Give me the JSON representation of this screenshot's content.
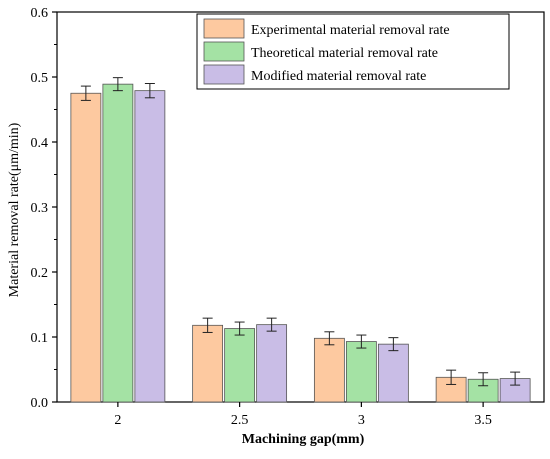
{
  "chart_data": {
    "type": "bar",
    "xlabel": "Machining gap(mm)",
    "ylabel": "Material removal rate(μm/min)",
    "categories": [
      "2",
      "2.5",
      "3",
      "3.5"
    ],
    "ylim": [
      0,
      0.6
    ],
    "yticks": [
      "0.0",
      "0.1",
      "0.2",
      "0.3",
      "0.4",
      "0.5",
      "0.6"
    ],
    "legend_position": "top-right",
    "grid": false,
    "series": [
      {
        "name": "Experimental material removal rate",
        "color": "#fdc9a0",
        "values": [
          0.475,
          0.118,
          0.098,
          0.038
        ],
        "errors": [
          0.011,
          0.011,
          0.01,
          0.011
        ]
      },
      {
        "name": "Theoretical material removal rate",
        "color": "#a4e2a4",
        "values": [
          0.489,
          0.113,
          0.093,
          0.035
        ],
        "errors": [
          0.01,
          0.01,
          0.01,
          0.01
        ]
      },
      {
        "name": "Modified material removal rate",
        "color": "#c9bde6",
        "values": [
          0.479,
          0.119,
          0.089,
          0.036
        ],
        "errors": [
          0.011,
          0.01,
          0.01,
          0.01
        ]
      }
    ]
  }
}
